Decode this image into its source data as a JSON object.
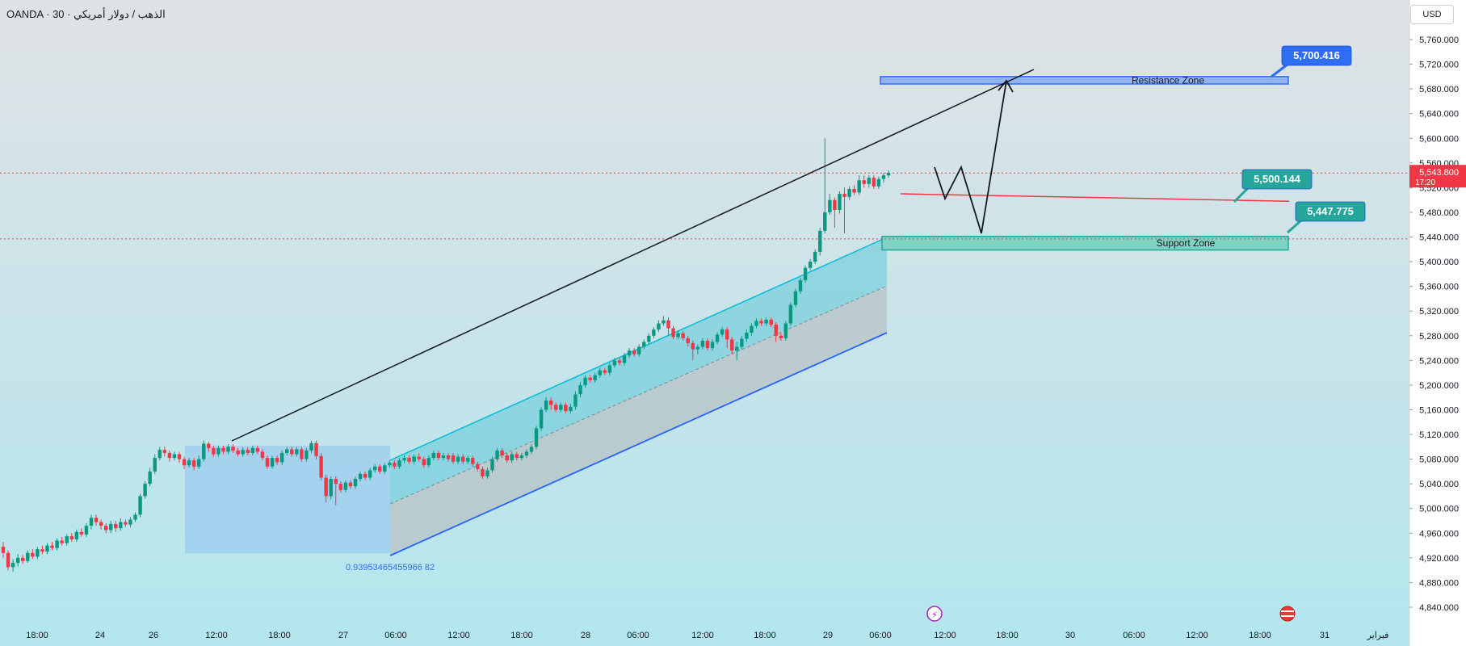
{
  "header": {
    "symbol_title": "OANDA · 30 · الذهب / دولار أمريكي",
    "currency": "USD"
  },
  "colors": {
    "bg_top": "#dfe2e5",
    "bg_bottom": "#b3e6ee",
    "up": "#089981",
    "down": "#f23645",
    "channel_fill": "#5fc9d9",
    "channel_edge": "#00bcd4",
    "lower_fill": "#b8c4c8",
    "channel_line": "#2962ff",
    "box_fill": "#90c3f0",
    "resistance_fill": "#90b4f0",
    "support_fill": "#7fd3c2",
    "label_blue": "#2f6df2",
    "label_green": "#26a69a",
    "price_tag": "#f23645"
  },
  "chart_data": {
    "type": "candlestick",
    "title": "",
    "xlabel": "",
    "ylabel": "",
    "ylim": [
      4810,
      5790
    ],
    "y_ticks": [
      4840,
      4880,
      4920,
      4960,
      5000,
      5040,
      5080,
      5120,
      5160,
      5200,
      5240,
      5280,
      5320,
      5360,
      5400,
      5440,
      5480,
      5520,
      5560,
      5600,
      5640,
      5680,
      5720,
      5760
    ],
    "y_tick_labels": [
      "4,840.000",
      "4,880.000",
      "4,920.000",
      "4,960.000",
      "5,000.000",
      "5,040.000",
      "5,080.000",
      "5,120.000",
      "5,160.000",
      "5,200.000",
      "5,240.000",
      "5,280.000",
      "5,320.000",
      "5,360.000",
      "5,400.000",
      "5,440.000",
      "5,480.000",
      "5,520.000",
      "5,560.000",
      "5,600.000",
      "5,640.000",
      "5,680.000",
      "5,720.000",
      "5,760.000"
    ],
    "x_ticks": [
      "18:00",
      "24",
      "26",
      "12:00",
      "18:00",
      "27",
      "06:00",
      "12:00",
      "18:00",
      "28",
      "06:00",
      "12:00",
      "18:00",
      "29",
      "06:00",
      "12:00",
      "18:00",
      "30",
      "06:00",
      "12:00",
      "18:00",
      "31",
      "فبراير"
    ],
    "grid": false,
    "current_price": {
      "value": 5543.8,
      "label": "5,543.800",
      "countdown": "17:20"
    },
    "candles": [
      [
        4938,
        4928,
        4946,
        4920
      ],
      [
        4928,
        4905,
        4932,
        4900
      ],
      [
        4905,
        4912,
        4918,
        4898
      ],
      [
        4912,
        4920,
        4926,
        4906
      ],
      [
        4920,
        4915,
        4925,
        4910
      ],
      [
        4915,
        4928,
        4932,
        4912
      ],
      [
        4928,
        4922,
        4934,
        4918
      ],
      [
        4922,
        4934,
        4938,
        4918
      ],
      [
        4934,
        4930,
        4940,
        4926
      ],
      [
        4930,
        4940,
        4944,
        4926
      ],
      [
        4940,
        4936,
        4946,
        4932
      ],
      [
        4936,
        4948,
        4952,
        4932
      ],
      [
        4948,
        4944,
        4954,
        4940
      ],
      [
        4944,
        4955,
        4958,
        4940
      ],
      [
        4955,
        4950,
        4960,
        4946
      ],
      [
        4950,
        4962,
        4966,
        4946
      ],
      [
        4962,
        4958,
        4968,
        4954
      ],
      [
        4958,
        4972,
        4976,
        4954
      ],
      [
        4972,
        4985,
        4990,
        4966
      ],
      [
        4985,
        4978,
        4990,
        4972
      ],
      [
        4978,
        4972,
        4982,
        4966
      ],
      [
        4972,
        4965,
        4976,
        4960
      ],
      [
        4965,
        4975,
        4980,
        4960
      ],
      [
        4975,
        4968,
        4980,
        4962
      ],
      [
        4968,
        4978,
        4984,
        4964
      ],
      [
        4978,
        4974,
        4982,
        4970
      ],
      [
        4974,
        4982,
        4986,
        4970
      ],
      [
        4982,
        4990,
        4994,
        4978
      ],
      [
        4990,
        5020,
        5024,
        4986
      ],
      [
        5020,
        5040,
        5044,
        5016
      ],
      [
        5040,
        5060,
        5066,
        5036
      ],
      [
        5060,
        5082,
        5088,
        5056
      ],
      [
        5082,
        5095,
        5100,
        5078
      ],
      [
        5095,
        5090,
        5100,
        5084
      ],
      [
        5090,
        5082,
        5094,
        5076
      ],
      [
        5082,
        5088,
        5092,
        5078
      ],
      [
        5088,
        5080,
        5092,
        5074
      ],
      [
        5080,
        5070,
        5084,
        5064
      ],
      [
        5070,
        5078,
        5082,
        5066
      ],
      [
        5078,
        5068,
        5082,
        5062
      ],
      [
        5068,
        5080,
        5086,
        5064
      ],
      [
        5080,
        5105,
        5110,
        5076
      ],
      [
        5105,
        5098,
        5108,
        5092
      ],
      [
        5098,
        5088,
        5102,
        5084
      ],
      [
        5088,
        5098,
        5102,
        5084
      ],
      [
        5098,
        5092,
        5102,
        5088
      ],
      [
        5092,
        5100,
        5104,
        5088
      ],
      [
        5100,
        5094,
        5104,
        5090
      ],
      [
        5094,
        5088,
        5098,
        5084
      ],
      [
        5088,
        5095,
        5099,
        5084
      ],
      [
        5095,
        5090,
        5099,
        5086
      ],
      [
        5090,
        5098,
        5102,
        5086
      ],
      [
        5098,
        5092,
        5102,
        5088
      ],
      [
        5092,
        5082,
        5096,
        5078
      ],
      [
        5082,
        5068,
        5086,
        5064
      ],
      [
        5068,
        5082,
        5086,
        5064
      ],
      [
        5082,
        5075,
        5086,
        5070
      ],
      [
        5075,
        5090,
        5094,
        5070
      ],
      [
        5090,
        5096,
        5100,
        5086
      ],
      [
        5096,
        5088,
        5100,
        5084
      ],
      [
        5088,
        5096,
        5100,
        5084
      ],
      [
        5096,
        5080,
        5100,
        5076
      ],
      [
        5080,
        5094,
        5098,
        5076
      ],
      [
        5094,
        5106,
        5110,
        5090
      ],
      [
        5106,
        5085,
        5110,
        5080
      ],
      [
        5085,
        5050,
        5090,
        5045
      ],
      [
        5050,
        5020,
        5055,
        5010
      ],
      [
        5020,
        5048,
        5052,
        5015
      ],
      [
        5048,
        5040,
        5052,
        5005
      ],
      [
        5040,
        5030,
        5044,
        5026
      ],
      [
        5030,
        5042,
        5046,
        5026
      ],
      [
        5042,
        5036,
        5046,
        5032
      ],
      [
        5036,
        5048,
        5052,
        5032
      ],
      [
        5048,
        5056,
        5060,
        5044
      ],
      [
        5056,
        5050,
        5060,
        5046
      ],
      [
        5050,
        5062,
        5066,
        5046
      ],
      [
        5062,
        5068,
        5072,
        5058
      ],
      [
        5068,
        5060,
        5072,
        5056
      ],
      [
        5060,
        5070,
        5074,
        5056
      ],
      [
        5070,
        5074,
        5078,
        5066
      ],
      [
        5074,
        5068,
        5078,
        5064
      ],
      [
        5068,
        5078,
        5082,
        5064
      ],
      [
        5078,
        5082,
        5086,
        5074
      ],
      [
        5082,
        5076,
        5086,
        5072
      ],
      [
        5076,
        5084,
        5088,
        5072
      ],
      [
        5084,
        5080,
        5090,
        5076
      ],
      [
        5080,
        5070,
        5084,
        5066
      ],
      [
        5070,
        5082,
        5086,
        5066
      ],
      [
        5082,
        5090,
        5094,
        5078
      ],
      [
        5090,
        5082,
        5094,
        5078
      ],
      [
        5082,
        5086,
        5090,
        5078
      ],
      [
        5086,
        5080,
        5090,
        5076
      ],
      [
        5086,
        5076,
        5090,
        5072
      ],
      [
        5076,
        5084,
        5088,
        5072
      ],
      [
        5084,
        5076,
        5088,
        5072
      ],
      [
        5076,
        5082,
        5086,
        5072
      ],
      [
        5082,
        5072,
        5086,
        5068
      ],
      [
        5072,
        5064,
        5076,
        5060
      ],
      [
        5064,
        5052,
        5068,
        5048
      ],
      [
        5052,
        5062,
        5066,
        5048
      ],
      [
        5062,
        5080,
        5084,
        5058
      ],
      [
        5080,
        5094,
        5098,
        5076
      ],
      [
        5094,
        5086,
        5098,
        5082
      ],
      [
        5086,
        5078,
        5090,
        5074
      ],
      [
        5078,
        5088,
        5092,
        5074
      ],
      [
        5088,
        5082,
        5092,
        5078
      ],
      [
        5082,
        5086,
        5090,
        5078
      ],
      [
        5086,
        5092,
        5096,
        5082
      ],
      [
        5092,
        5100,
        5104,
        5088
      ],
      [
        5100,
        5130,
        5134,
        5096
      ],
      [
        5130,
        5160,
        5164,
        5126
      ],
      [
        5160,
        5175,
        5180,
        5156
      ],
      [
        5175,
        5168,
        5180,
        5160
      ],
      [
        5168,
        5160,
        5172,
        5156
      ],
      [
        5160,
        5168,
        5172,
        5156
      ],
      [
        5168,
        5158,
        5172,
        5154
      ],
      [
        5158,
        5165,
        5170,
        5154
      ],
      [
        5165,
        5185,
        5190,
        5160
      ],
      [
        5185,
        5200,
        5205,
        5180
      ],
      [
        5200,
        5212,
        5216,
        5196
      ],
      [
        5212,
        5208,
        5216,
        5204
      ],
      [
        5208,
        5216,
        5220,
        5204
      ],
      [
        5216,
        5224,
        5228,
        5212
      ],
      [
        5224,
        5220,
        5228,
        5216
      ],
      [
        5220,
        5232,
        5236,
        5216
      ],
      [
        5232,
        5240,
        5244,
        5228
      ],
      [
        5240,
        5236,
        5244,
        5232
      ],
      [
        5236,
        5248,
        5252,
        5232
      ],
      [
        5248,
        5256,
        5260,
        5244
      ],
      [
        5256,
        5250,
        5260,
        5246
      ],
      [
        5250,
        5262,
        5266,
        5246
      ],
      [
        5262,
        5270,
        5274,
        5258
      ],
      [
        5270,
        5280,
        5284,
        5266
      ],
      [
        5280,
        5290,
        5294,
        5276
      ],
      [
        5290,
        5300,
        5305,
        5286
      ],
      [
        5300,
        5305,
        5312,
        5296
      ],
      [
        5305,
        5292,
        5310,
        5280
      ],
      [
        5292,
        5278,
        5296,
        5274
      ],
      [
        5278,
        5284,
        5288,
        5274
      ],
      [
        5284,
        5276,
        5288,
        5272
      ],
      [
        5276,
        5268,
        5280,
        5262
      ],
      [
        5268,
        5258,
        5272,
        5240
      ],
      [
        5258,
        5262,
        5266,
        5250
      ],
      [
        5262,
        5272,
        5276,
        5258
      ],
      [
        5272,
        5260,
        5276,
        5256
      ],
      [
        5260,
        5270,
        5274,
        5256
      ],
      [
        5270,
        5282,
        5286,
        5266
      ],
      [
        5282,
        5290,
        5294,
        5278
      ],
      [
        5290,
        5274,
        5294,
        5260
      ],
      [
        5274,
        5256,
        5278,
        5250
      ],
      [
        5256,
        5262,
        5270,
        5240
      ],
      [
        5262,
        5275,
        5280,
        5258
      ],
      [
        5275,
        5285,
        5290,
        5270
      ],
      [
        5285,
        5296,
        5300,
        5280
      ],
      [
        5296,
        5304,
        5308,
        5292
      ],
      [
        5304,
        5300,
        5308,
        5296
      ],
      [
        5300,
        5306,
        5310,
        5296
      ],
      [
        5306,
        5298,
        5310,
        5294
      ],
      [
        5298,
        5280,
        5302,
        5270
      ],
      [
        5280,
        5276,
        5284,
        5272
      ],
      [
        5276,
        5300,
        5304,
        5272
      ],
      [
        5300,
        5330,
        5334,
        5296
      ],
      [
        5330,
        5352,
        5356,
        5326
      ],
      [
        5352,
        5370,
        5374,
        5348
      ],
      [
        5370,
        5390,
        5394,
        5366
      ],
      [
        5390,
        5400,
        5404,
        5386
      ],
      [
        5400,
        5416,
        5420,
        5396
      ],
      [
        5416,
        5450,
        5455,
        5410
      ],
      [
        5450,
        5480,
        5600,
        5446
      ],
      [
        5480,
        5500,
        5510,
        5476
      ],
      [
        5500,
        5484,
        5504,
        5455
      ],
      [
        5484,
        5510,
        5514,
        5478
      ],
      [
        5510,
        5505,
        5520,
        5446
      ],
      [
        5505,
        5518,
        5522,
        5500
      ],
      [
        5518,
        5512,
        5524,
        5508
      ],
      [
        5512,
        5532,
        5540,
        5508
      ],
      [
        5532,
        5526,
        5540,
        5520
      ],
      [
        5526,
        5536,
        5540,
        5520
      ],
      [
        5536,
        5522,
        5540,
        5518
      ],
      [
        5522,
        5534,
        5538,
        5518
      ],
      [
        5534,
        5540,
        5544,
        5528
      ],
      [
        5540,
        5544,
        5548,
        5536
      ]
    ],
    "annotations": {
      "resistance_zone": {
        "label": "Resistance Zone",
        "from": 5688,
        "to": 5700
      },
      "support_zone": {
        "label": "Support Zone",
        "from": 5419,
        "to": 5441
      },
      "price_labels": [
        "5,700.416",
        "5,500.144",
        "5,447.775"
      ],
      "fib_text": "0.93953465455966 82"
    }
  }
}
